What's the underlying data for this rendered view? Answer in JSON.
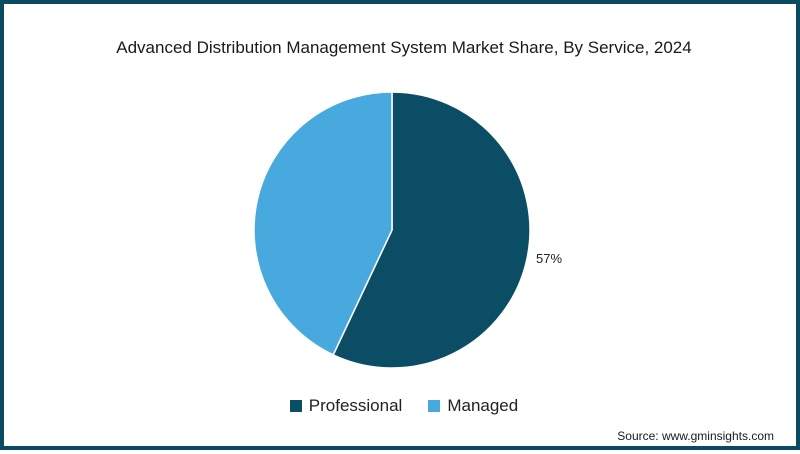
{
  "chart_data": {
    "type": "pie",
    "title": "Advanced Distribution Management System Market Share, By Service, 2024",
    "categories": [
      "Professional",
      "Managed"
    ],
    "values": [
      57,
      43
    ],
    "colors": [
      "#0a4d64",
      "#47a9de"
    ],
    "data_labels": [
      "57%",
      ""
    ],
    "start_angle_deg": 0,
    "direction": "clockwise",
    "legend_position": "bottom",
    "source": "Source: www.gminsights.com"
  },
  "title": "Advanced Distribution Management System Market Share, By Service, 2024",
  "label_professional": "57%",
  "legend": [
    {
      "label": "Professional",
      "color": "#0a4d64"
    },
    {
      "label": "Managed",
      "color": "#47a9de"
    }
  ],
  "source": "Source: www.gminsights.com",
  "border_color": "#0b4a63"
}
